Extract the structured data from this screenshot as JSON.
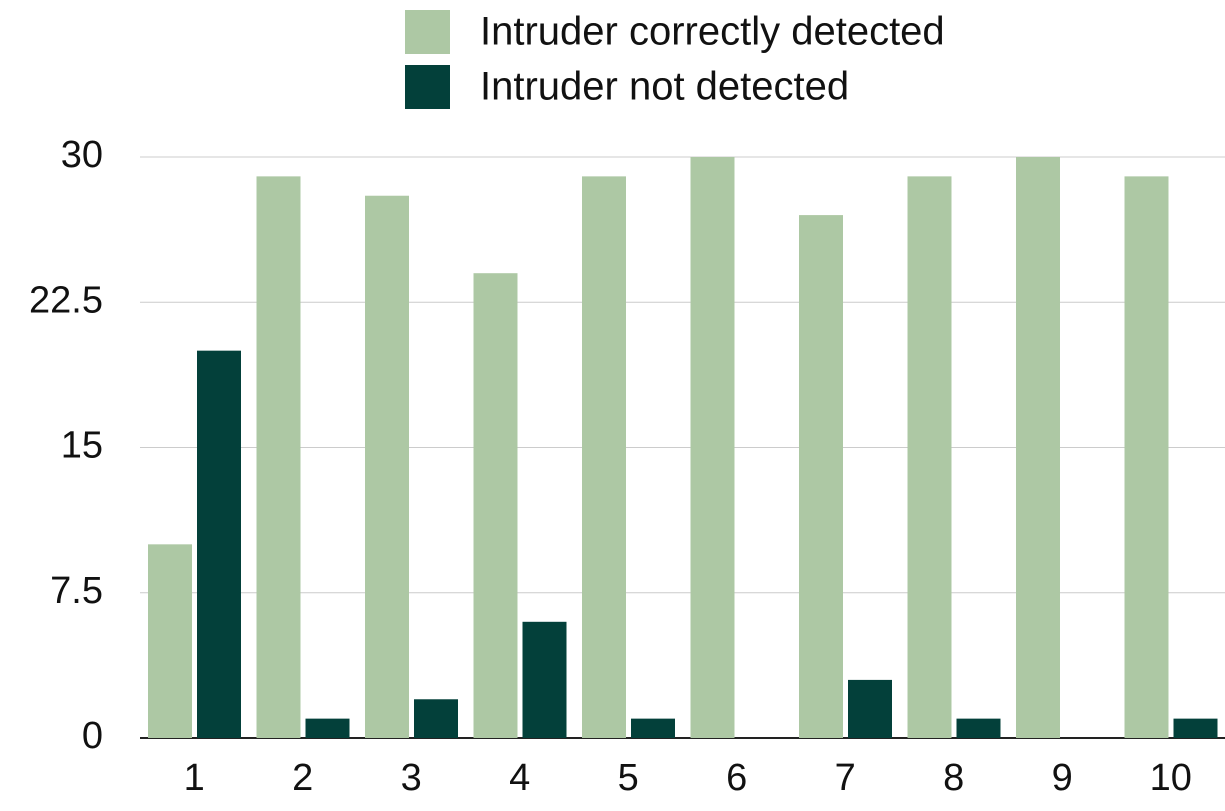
{
  "chart_data": {
    "type": "bar",
    "categories": [
      "1",
      "2",
      "3",
      "4",
      "5",
      "6",
      "7",
      "8",
      "9",
      "10"
    ],
    "series": [
      {
        "name": "Intruder correctly detected",
        "color": "#adc8a4",
        "values": [
          10,
          29,
          28,
          24,
          29,
          30,
          27,
          29,
          30,
          29
        ]
      },
      {
        "name": "Intruder not detected",
        "color": "#03403a",
        "values": [
          20,
          1,
          2,
          6,
          1,
          0,
          3,
          1,
          0,
          1
        ]
      }
    ],
    "ylim": [
      0,
      30
    ],
    "yticks": [
      0,
      7.5,
      15,
      22.5,
      30
    ],
    "grid": true,
    "legend": "top"
  }
}
